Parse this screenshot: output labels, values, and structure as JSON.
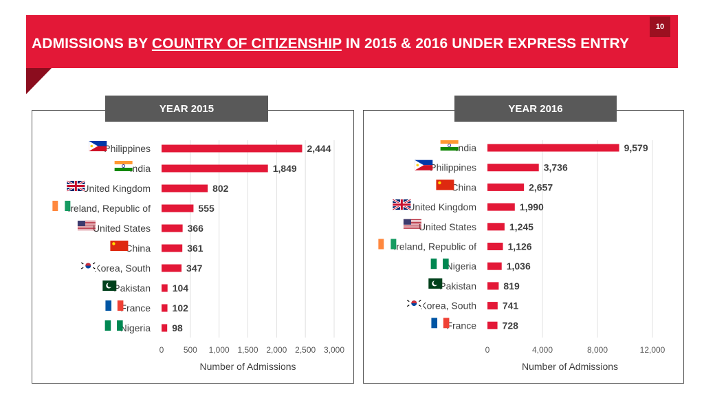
{
  "header": {
    "title_pre": "ADMISSIONS BY ",
    "title_underlined": "COUNTRY OF CITIZENSHIP",
    "title_post": " IN 2015 & 2016 UNDER EXPRESS ENTRY",
    "page_number": "10"
  },
  "colors": {
    "accent": "#e31837",
    "label_bg": "#595959"
  },
  "chart_data": [
    {
      "type": "bar",
      "orientation": "horizontal",
      "title": "YEAR 2015",
      "categories": [
        "Philippines",
        "India",
        "United Kingdom",
        "Ireland, Republic of",
        "United States",
        "China",
        "Korea, South",
        "Pakistan",
        "France",
        "Nigeria"
      ],
      "values": [
        2444,
        1849,
        802,
        555,
        366,
        361,
        347,
        104,
        102,
        98
      ],
      "value_labels": [
        "2,444",
        "1,849",
        "802",
        "555",
        "366",
        "361",
        "347",
        "104",
        "102",
        "98"
      ],
      "flags": [
        "philippines-flag-icon",
        "india-flag-icon",
        "uk-flag-icon",
        "ireland-flag-icon",
        "us-flag-icon",
        "china-flag-icon",
        "korea-flag-icon",
        "pakistan-flag-icon",
        "france-flag-icon",
        "nigeria-flag-icon"
      ],
      "xlabel": "Number of Admissions",
      "xlim": [
        0,
        3000
      ],
      "xticks": [
        0,
        500,
        1000,
        1500,
        2000,
        2500,
        3000
      ],
      "xtick_labels": [
        "0",
        "500",
        "1,000",
        "1,500",
        "2,000",
        "2,500",
        "3,000"
      ],
      "grid": true
    },
    {
      "type": "bar",
      "orientation": "horizontal",
      "title": "YEAR 2016",
      "categories": [
        "India",
        "Philippines",
        "China",
        "United Kingdom",
        "United States",
        "Ireland, Republic of",
        "Nigeria",
        "Pakistan",
        "Korea, South",
        "France"
      ],
      "values": [
        9579,
        3736,
        2657,
        1990,
        1245,
        1126,
        1036,
        819,
        741,
        728
      ],
      "value_labels": [
        "9,579",
        "3,736",
        "2,657",
        "1,990",
        "1,245",
        "1,126",
        "1,036",
        "819",
        "741",
        "728"
      ],
      "flags": [
        "india-flag-icon",
        "philippines-flag-icon",
        "china-flag-icon",
        "uk-flag-icon",
        "us-flag-icon",
        "ireland-flag-icon",
        "nigeria-flag-icon",
        "pakistan-flag-icon",
        "korea-flag-icon",
        "france-flag-icon"
      ],
      "xlabel": "Number of Admissions",
      "xlim": [
        0,
        12000
      ],
      "xticks": [
        0,
        4000,
        8000,
        12000
      ],
      "xtick_labels": [
        "0",
        "4,000",
        "8,000",
        "12,000"
      ],
      "grid": true
    }
  ]
}
